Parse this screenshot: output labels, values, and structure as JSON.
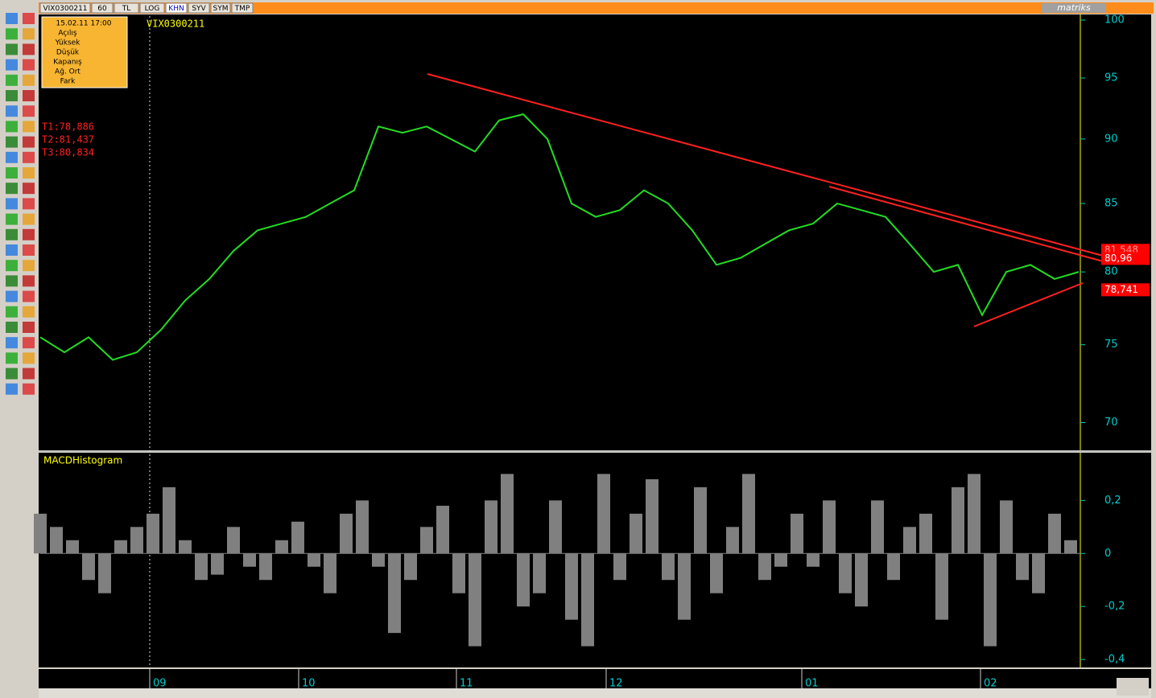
{
  "toolbar": {
    "tabs": [
      "VIX0300211",
      "60",
      "TL",
      "LOG",
      "KHN",
      "SYV",
      "SYM",
      "TMP"
    ],
    "brand": "matriks"
  },
  "info_box": {
    "datetime": "15.02.11 17:00",
    "fields": [
      "Açılış",
      "Yüksek",
      "Düşük",
      "Kapanış",
      "Ağ. Ort",
      "Fark"
    ]
  },
  "targets": [
    "T1:78,886",
    "T2:81,437",
    "T3:80,834"
  ],
  "price_chart": {
    "type": "line",
    "symbol": "VIX0300211",
    "log_scale": true,
    "color": "#22dd22",
    "values": [
      75.5,
      74.5,
      75.5,
      74,
      74.5,
      76,
      78,
      79.5,
      81.5,
      83,
      83.5,
      84,
      85,
      86,
      91,
      90.5,
      91,
      90,
      89,
      91.5,
      92,
      90,
      85,
      84,
      84.5,
      86,
      85,
      83,
      80.5,
      81,
      82,
      83,
      83.5,
      85,
      84.5,
      84,
      82,
      80,
      80.5,
      77,
      80,
      80.5,
      79.5,
      80
    ],
    "ylim": [
      68.3,
      100.5
    ],
    "yticks": [
      70,
      75,
      80,
      85,
      90,
      95,
      100
    ],
    "price_labels": [
      {
        "value": 81.548,
        "label": "81,548"
      },
      {
        "value": 80.96,
        "label": "80,96"
      },
      {
        "value": 78.741,
        "label": "78,741"
      }
    ]
  },
  "macd_chart": {
    "type": "bar",
    "title": "MACDHistogram",
    "color": "#808080",
    "values": [
      0.15,
      0.1,
      0.05,
      -0.1,
      -0.15,
      0.05,
      0.1,
      0.15,
      0.25,
      0.05,
      -0.1,
      -0.08,
      0.1,
      -0.05,
      -0.1,
      0.05,
      0.12,
      -0.05,
      -0.15,
      0.15,
      0.2,
      -0.05,
      -0.3,
      -0.1,
      0.1,
      0.18,
      -0.15,
      -0.35,
      0.2,
      0.3,
      -0.2,
      -0.15,
      0.2,
      -0.25,
      -0.35,
      0.3,
      -0.1,
      0.15,
      0.28,
      -0.1,
      -0.25,
      0.25,
      -0.15,
      0.1,
      0.3,
      -0.1,
      -0.05,
      0.15,
      -0.05,
      0.2,
      -0.15,
      -0.2,
      0.2,
      -0.1,
      0.1,
      0.15,
      -0.25,
      0.25,
      0.3,
      -0.35,
      0.2,
      -0.1,
      -0.15,
      0.15,
      0.05
    ],
    "ylim": [
      -0.43,
      0.38
    ],
    "yticks": [
      {
        "value": 0.2,
        "label": "0,2"
      },
      0,
      {
        "value": -0.2,
        "label": "-0,2"
      },
      {
        "value": -0.4,
        "label": "-0,4"
      }
    ]
  },
  "time_axis": {
    "labels": [
      "09",
      "10",
      "11",
      "12",
      "01",
      "02"
    ]
  }
}
